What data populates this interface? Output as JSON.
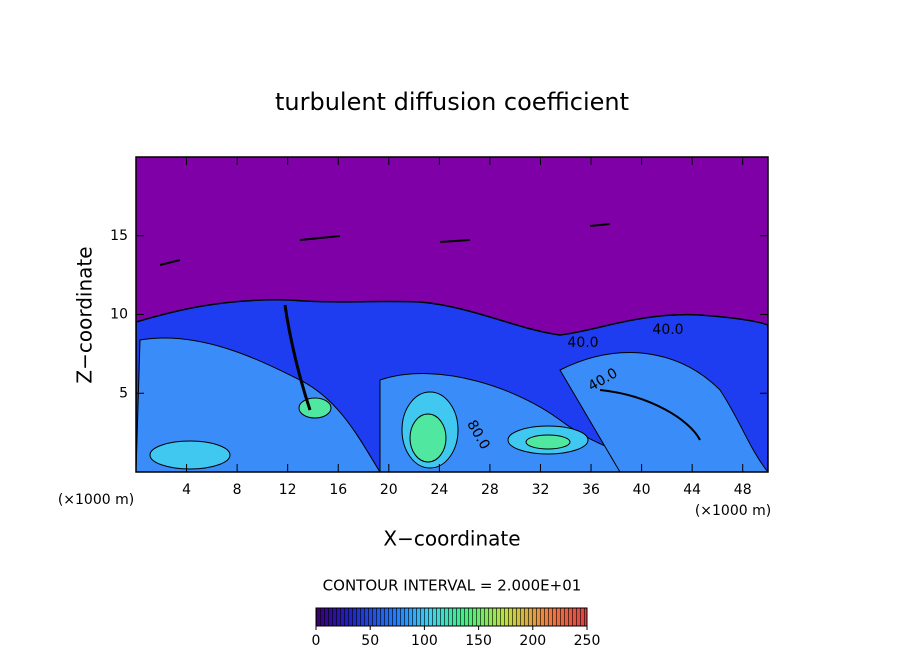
{
  "chart_data": {
    "type": "contour",
    "title": "turbulent diffusion coefficient",
    "x_label": "X−coordinate",
    "y_label": "Z−coordinate",
    "x_unit": "(×1000 m)",
    "y_unit": "(×1000 m)",
    "xlim": [
      0,
      50
    ],
    "xticks": [
      4,
      8,
      12,
      16,
      20,
      24,
      28,
      32,
      36,
      40,
      44,
      48
    ],
    "ylim": [
      0,
      20
    ],
    "yticks": [
      5,
      10,
      15
    ],
    "contour_labels": [
      "40.0",
      "40.0",
      "80.0",
      "40.0"
    ],
    "contour_interval": "CONTOUR INTERVAL = 2.000E+01",
    "colorbar": {
      "lim": [
        0,
        250
      ],
      "ticks": [
        0,
        50,
        100,
        150,
        200,
        250
      ]
    }
  }
}
